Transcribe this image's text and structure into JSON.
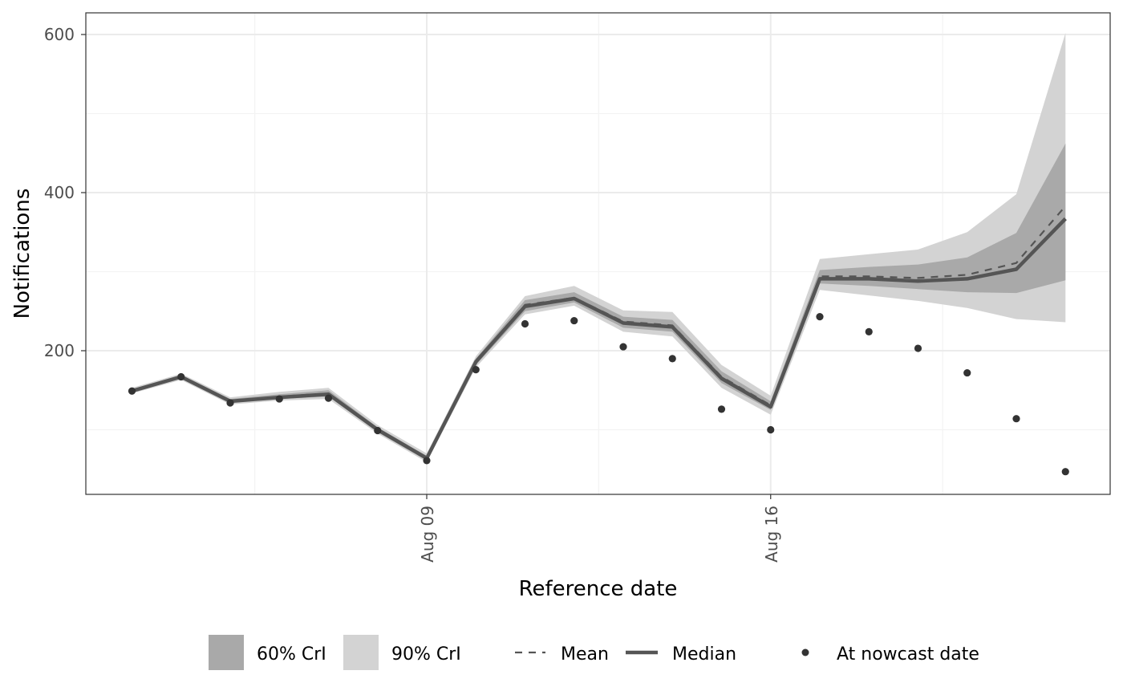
{
  "chart_data": {
    "type": "line",
    "title": "",
    "xlabel": "Reference date",
    "ylabel": "Notifications",
    "x_tick_labels": [
      {
        "index": 6,
        "label": "Aug 09"
      },
      {
        "index": 13,
        "label": "Aug 16"
      }
    ],
    "y_ticks": [
      200,
      400,
      600
    ],
    "ylim": [
      20,
      615
    ],
    "grid": true,
    "legend_position": "bottom",
    "x": [
      "Aug 03",
      "Aug 04",
      "Aug 05",
      "Aug 06",
      "Aug 07",
      "Aug 08",
      "Aug 09",
      "Aug 10",
      "Aug 11",
      "Aug 12",
      "Aug 13",
      "Aug 14",
      "Aug 15",
      "Aug 16",
      "Aug 17",
      "Aug 18",
      "Aug 19",
      "Aug 20",
      "Aug 21",
      "Aug 22"
    ],
    "series": [
      {
        "name": "Median",
        "style": "solid",
        "values": [
          149,
          167,
          136,
          141,
          145,
          100,
          64,
          186,
          256,
          266,
          235,
          230,
          165,
          129,
          291,
          291,
          288,
          291,
          303,
          367
        ]
      },
      {
        "name": "Mean",
        "style": "dashed",
        "values": [
          149,
          167,
          136,
          142,
          146,
          100,
          64,
          187,
          258,
          267,
          237,
          232,
          167,
          131,
          294,
          294,
          292,
          296,
          311,
          383
        ]
      },
      {
        "name": "60% CrI",
        "style": "band",
        "lower": [
          147,
          165,
          134,
          139,
          142,
          97,
          61,
          182,
          250,
          261,
          229,
          224,
          159,
          125,
          285,
          282,
          278,
          274,
          273,
          289
        ],
        "upper": [
          151,
          169,
          139,
          145,
          150,
          103,
          67,
          190,
          264,
          274,
          243,
          239,
          174,
          136,
          302,
          306,
          309,
          318,
          349,
          462
        ]
      },
      {
        "name": "90% CrI",
        "style": "band",
        "lower": [
          146,
          163,
          132,
          137,
          139,
          95,
          59,
          179,
          246,
          257,
          224,
          218,
          153,
          119,
          277,
          270,
          263,
          254,
          240,
          236
        ],
        "upper": [
          153,
          171,
          141,
          148,
          153,
          106,
          70,
          193,
          269,
          282,
          251,
          249,
          182,
          143,
          316,
          322,
          328,
          350,
          398,
          602
        ]
      },
      {
        "name": "At nowcast date",
        "style": "points",
        "values": [
          149,
          167,
          134,
          139,
          140,
          99,
          61,
          176,
          234,
          238,
          205,
          190,
          126,
          100,
          243,
          224,
          203,
          172,
          114,
          47
        ]
      }
    ],
    "legend": {
      "band60_label": "60% CrI",
      "band90_label": "90% CrI",
      "mean_label": "Mean",
      "median_label": "Median",
      "points_label": "At nowcast date"
    },
    "colors": {
      "band60": "#a9a9a9",
      "band90": "#d3d3d3",
      "line": "#555555",
      "points": "#333333",
      "grid_major": "#ebebeb",
      "grid_minor": "#f3f3f3",
      "panel_border": "#333333"
    }
  }
}
